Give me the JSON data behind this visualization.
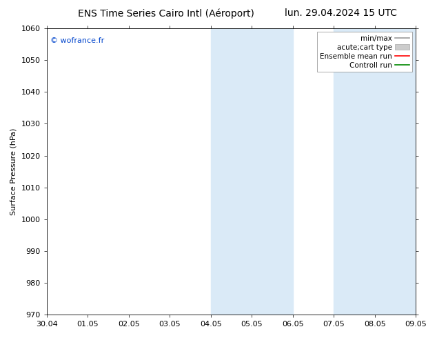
{
  "title_left": "ENS Time Series Cairo Intl (Aéroport)",
  "title_right": "lun. 29.04.2024 15 UTC",
  "ylabel": "Surface Pressure (hPa)",
  "ylim": [
    970,
    1060
  ],
  "yticks": [
    970,
    980,
    990,
    1000,
    1010,
    1020,
    1030,
    1040,
    1050,
    1060
  ],
  "xtick_labels": [
    "30.04",
    "01.05",
    "02.05",
    "03.05",
    "04.05",
    "05.05",
    "06.05",
    "07.05",
    "08.05",
    "09.05"
  ],
  "copyright_text": "© wofrance.fr",
  "copyright_color": "#0044cc",
  "shaded_regions": [
    {
      "xstart": 4,
      "xend": 6,
      "color": "#daeaf7"
    },
    {
      "xstart": 7,
      "xend": 9,
      "color": "#daeaf7"
    }
  ],
  "legend_entries": [
    {
      "label": "min/max",
      "type": "hline",
      "color": "#999999"
    },
    {
      "label": "acute;cart type",
      "type": "rect",
      "color": "#cccccc"
    },
    {
      "label": "Ensemble mean run",
      "type": "line",
      "color": "#ff0000"
    },
    {
      "label": "Controll run",
      "type": "line",
      "color": "#008800"
    }
  ],
  "background_color": "#ffffff",
  "plot_bg_color": "#ffffff",
  "title_fontsize": 10,
  "axis_label_fontsize": 8,
  "tick_fontsize": 8,
  "legend_fontsize": 7.5
}
